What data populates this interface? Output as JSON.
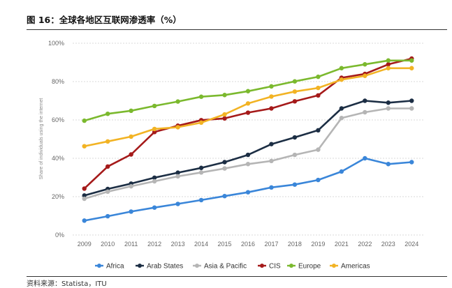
{
  "figure": {
    "title": "图 16：全球各地区互联网渗透率（%）",
    "source": "资料来源：Statista，ITU"
  },
  "chart_data": {
    "type": "line",
    "ylabel": "Share of individuals using the internet",
    "xlabel": "",
    "ylim": [
      0,
      100
    ],
    "yticks": [
      "0%",
      "20%",
      "40%",
      "60%",
      "80%",
      "100%"
    ],
    "ytick_values": [
      0,
      20,
      40,
      60,
      80,
      100
    ],
    "categories": [
      "2009",
      "2010",
      "2011",
      "2012",
      "2013",
      "2014",
      "2015",
      "2016",
      "2017",
      "2018",
      "2019",
      "2021",
      "2022",
      "2023",
      "2024"
    ],
    "grid": true,
    "legend_position": "bottom",
    "series": [
      {
        "name": "Africa",
        "color": "#3a86d9",
        "values": [
          7.5,
          9.8,
          12.2,
          14.3,
          16.2,
          18.2,
          20.3,
          22.3,
          24.8,
          26.3,
          28.7,
          33.1,
          40.0,
          37.0,
          38.0
        ]
      },
      {
        "name": "Arab States",
        "color": "#1c2e44",
        "values": [
          20.6,
          24.0,
          26.8,
          29.9,
          32.5,
          35.0,
          38.0,
          41.8,
          47.4,
          50.9,
          54.6,
          66.0,
          70.0,
          69.0,
          70.0
        ]
      },
      {
        "name": "Asia & Pacific",
        "color": "#b5b5b5",
        "values": [
          18.9,
          22.6,
          25.4,
          28.0,
          30.6,
          32.6,
          34.7,
          37.0,
          38.6,
          41.8,
          44.5,
          61.0,
          64.0,
          66.0,
          66.0
        ]
      },
      {
        "name": "CIS",
        "color": "#a51a1a",
        "values": [
          24.2,
          35.7,
          42.0,
          53.7,
          57.0,
          59.9,
          60.8,
          63.8,
          66.0,
          69.7,
          72.8,
          82.0,
          84.0,
          89.0,
          92.0
        ]
      },
      {
        "name": "Europe",
        "color": "#7bb92e",
        "values": [
          59.6,
          63.2,
          64.8,
          67.3,
          69.6,
          72.1,
          73.0,
          75.0,
          77.5,
          80.1,
          82.5,
          87.0,
          89.0,
          91.0,
          91.0
        ]
      },
      {
        "name": "Americas",
        "color": "#f2b324",
        "values": [
          46.3,
          48.8,
          51.3,
          55.3,
          56.2,
          58.6,
          62.9,
          68.6,
          72.2,
          74.8,
          76.7,
          81.0,
          83.0,
          87.0,
          87.0
        ]
      }
    ]
  }
}
